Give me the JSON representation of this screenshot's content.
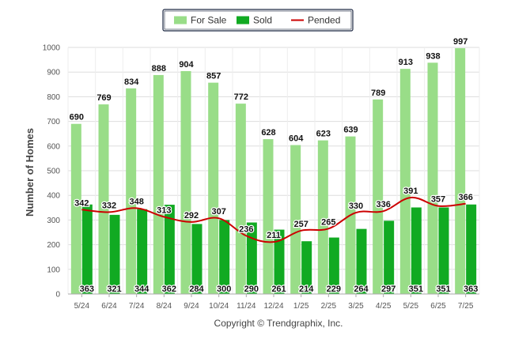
{
  "chart_data": {
    "type": "bar",
    "categories": [
      "5/24",
      "6/24",
      "7/24",
      "8/24",
      "9/24",
      "10/24",
      "11/24",
      "12/24",
      "1/25",
      "2/25",
      "3/25",
      "4/25",
      "5/25",
      "6/25",
      "7/25"
    ],
    "series": [
      {
        "name": "For Sale",
        "type": "bar",
        "color": "#99dd88",
        "values": [
          690,
          769,
          834,
          888,
          904,
          857,
          772,
          628,
          604,
          623,
          639,
          789,
          913,
          938,
          997
        ]
      },
      {
        "name": "Sold",
        "type": "bar",
        "color": "#11aa22",
        "values": [
          363,
          321,
          344,
          362,
          284,
          300,
          290,
          261,
          214,
          229,
          264,
          297,
          351,
          351,
          363
        ]
      },
      {
        "name": "Pended",
        "type": "line",
        "color": "#cc0000",
        "values": [
          342,
          332,
          348,
          313,
          292,
          307,
          236,
          211,
          257,
          265,
          330,
          336,
          391,
          357,
          366
        ]
      }
    ],
    "ylabel": "Number of Homes",
    "ylim": [
      0,
      1000
    ],
    "yticks": [
      0,
      100,
      200,
      300,
      400,
      500,
      600,
      700,
      800,
      900,
      1000
    ],
    "legend_position": "top-center",
    "grid": true
  },
  "footer": {
    "copyright": "Copyright © Trendgraphix, Inc."
  }
}
